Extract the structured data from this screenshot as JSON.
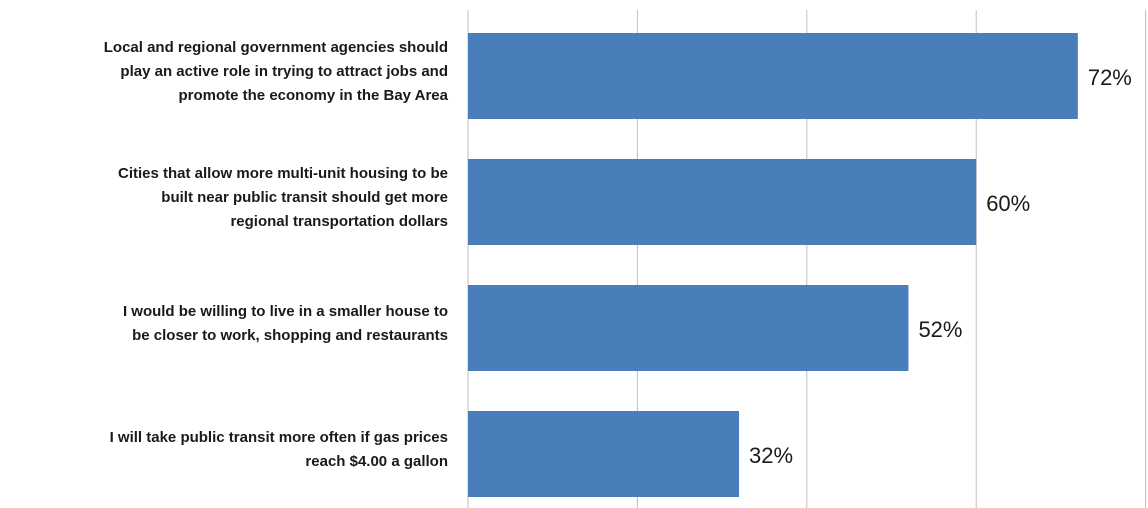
{
  "chart_data": {
    "type": "bar",
    "orientation": "horizontal",
    "categories": [
      [
        "Local and regional government agencies should",
        "play an active role in trying to attract jobs and",
        "promote the economy in the Bay Area"
      ],
      [
        "Cities that allow more multi-unit housing to be",
        "built near public transit should get more",
        "regional transportation dollars"
      ],
      [
        "I would be willing to live in a smaller house to",
        "be closer to work, shopping and restaurants"
      ],
      [
        "I will take public transit more often if gas prices",
        "reach $4.00 a gallon"
      ]
    ],
    "values": [
      72,
      60,
      52,
      32
    ],
    "value_labels": [
      "72%",
      "60%",
      "52%",
      "32%"
    ],
    "color": "#4a7ebb",
    "xlim": [
      0,
      80
    ],
    "xticks": [
      0,
      20,
      40,
      60,
      80
    ],
    "grid": true
  }
}
